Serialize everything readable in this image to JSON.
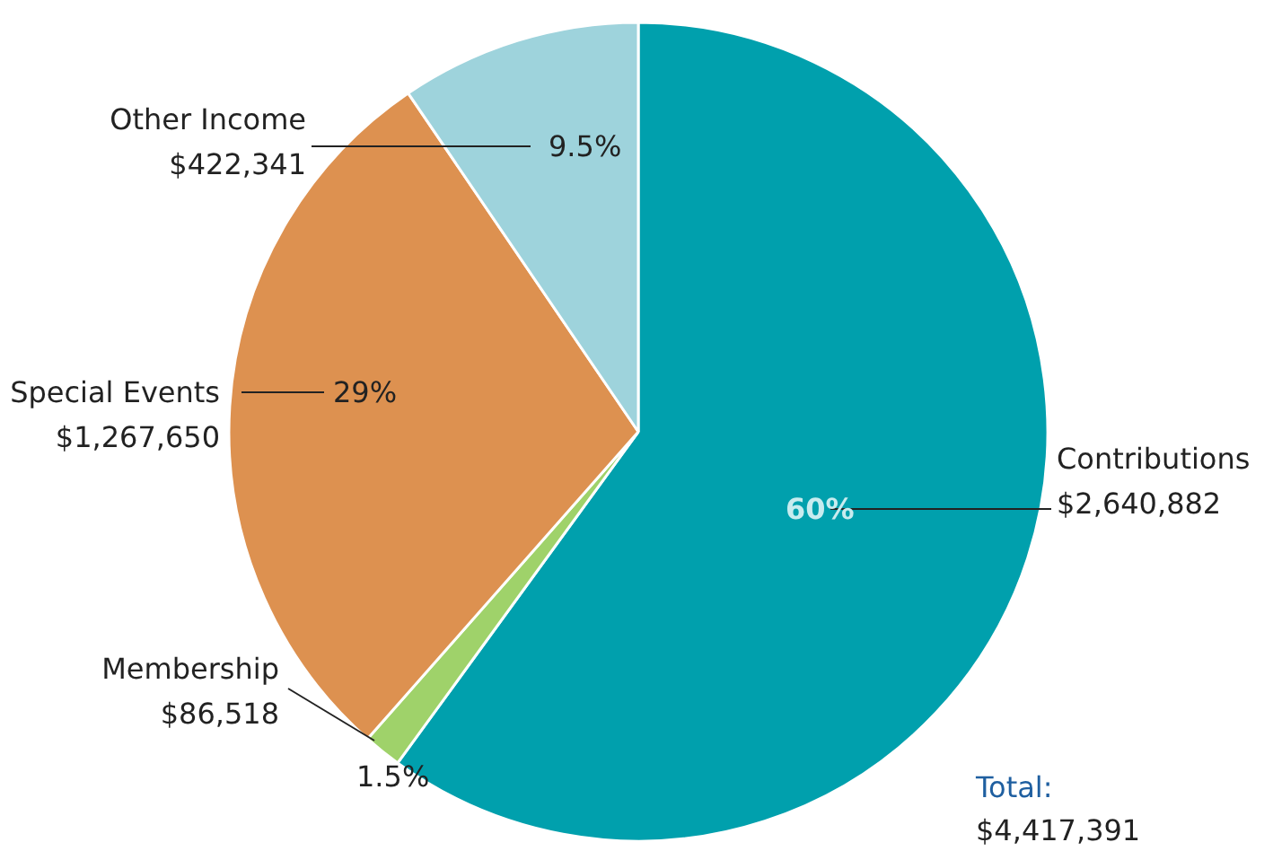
{
  "chart_data": {
    "type": "pie",
    "categories": [
      "Contributions",
      "Membership",
      "Special Events",
      "Other Income"
    ],
    "values": [
      60,
      1.5,
      29,
      9.5
    ],
    "colors": [
      "#00a0ad",
      "#9fd26a",
      "#dd9150",
      "#9ed3dc"
    ],
    "value_labels": [
      "60%",
      "1.5%",
      "29%",
      "9.5%"
    ],
    "annotations": [
      "$2,640,882",
      "$86,518",
      "$1,267,650",
      "$422,341",
      "Total:",
      "$4,417,391"
    ]
  }
}
